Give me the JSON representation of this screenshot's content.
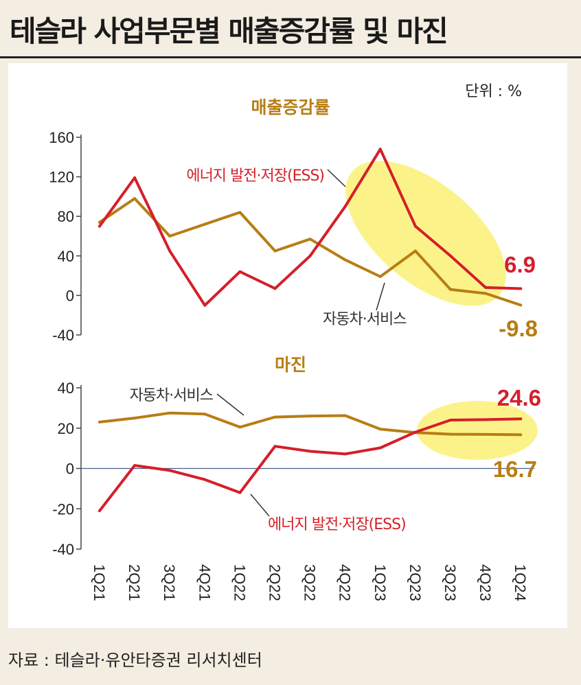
{
  "title": "테슬라 사업부문별 매출증감률 및 마진",
  "unit": "단위 : %",
  "source": "자료 : 테슬라·유안타증권 리서치센터",
  "colors": {
    "energy": "#d41f2a",
    "auto": "#b87d14",
    "highlight": "#fbf38a"
  },
  "chart_data": [
    {
      "type": "line",
      "title": "매출증감률",
      "categories": [
        "1Q21",
        "2Q21",
        "3Q21",
        "4Q21",
        "1Q22",
        "2Q22",
        "3Q22",
        "4Q22",
        "1Q23",
        "2Q23",
        "3Q23",
        "4Q23",
        "1Q24"
      ],
      "ylim": [
        -40,
        160
      ],
      "yticks": [
        "160",
        "120",
        "80",
        "40",
        "0",
        "-40"
      ],
      "series": [
        {
          "name": "에너지 발전·저장(ESS)",
          "values": [
            70,
            119,
            45,
            -10,
            24,
            7,
            40,
            90,
            148,
            70,
            40,
            8,
            6.9
          ],
          "end_label": "6.9"
        },
        {
          "name": "자동차·서비스",
          "values": [
            74,
            98,
            60,
            72,
            84,
            45,
            57,
            36,
            19,
            45,
            6,
            2,
            -9.8
          ],
          "end_label": "-9.8"
        }
      ]
    },
    {
      "type": "line",
      "title": "마진",
      "categories": [
        "1Q21",
        "2Q21",
        "3Q21",
        "4Q21",
        "1Q22",
        "2Q22",
        "3Q22",
        "4Q22",
        "1Q23",
        "2Q23",
        "3Q23",
        "4Q23",
        "1Q24"
      ],
      "ylim": [
        -40,
        40
      ],
      "yticks": [
        "40",
        "20",
        "0",
        "-20",
        "-40"
      ],
      "series": [
        {
          "name": "에너지 발전·저장(ESS)",
          "values": [
            -21,
            1.5,
            -1,
            -5.5,
            -12,
            11,
            8.5,
            7.2,
            10.2,
            18,
            24,
            24.2,
            24.6
          ],
          "end_label": "24.6"
        },
        {
          "name": "자동차·서비스",
          "values": [
            23,
            25,
            27.5,
            27,
            20.5,
            25.5,
            26,
            26.2,
            19.5,
            17.8,
            17,
            16.9,
            16.7
          ],
          "end_label": "16.7"
        }
      ]
    }
  ]
}
